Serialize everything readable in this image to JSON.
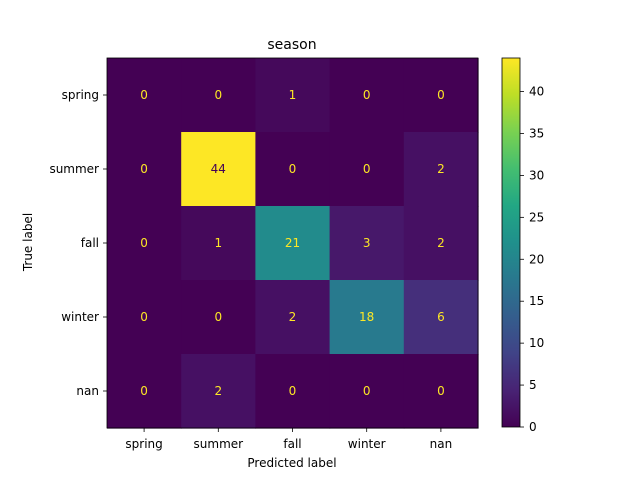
{
  "chart_data": {
    "type": "heatmap",
    "title": "season",
    "xlabel": "Predicted label",
    "ylabel": "True label",
    "x_categories": [
      "spring",
      "summer",
      "fall",
      "winter",
      "nan"
    ],
    "y_categories": [
      "spring",
      "summer",
      "fall",
      "winter",
      "nan"
    ],
    "values": [
      [
        0,
        0,
        1,
        0,
        0
      ],
      [
        0,
        44,
        0,
        0,
        2
      ],
      [
        0,
        1,
        21,
        3,
        2
      ],
      [
        0,
        0,
        2,
        18,
        6
      ],
      [
        0,
        2,
        0,
        0,
        0
      ]
    ],
    "colormap": "viridis",
    "color_range": [
      0,
      44
    ],
    "colorbar_ticks": [
      0,
      5,
      10,
      15,
      20,
      25,
      30,
      35,
      40
    ],
    "annotation_colors": {
      "on_dark": "#fde725",
      "on_light": "#440154"
    }
  }
}
